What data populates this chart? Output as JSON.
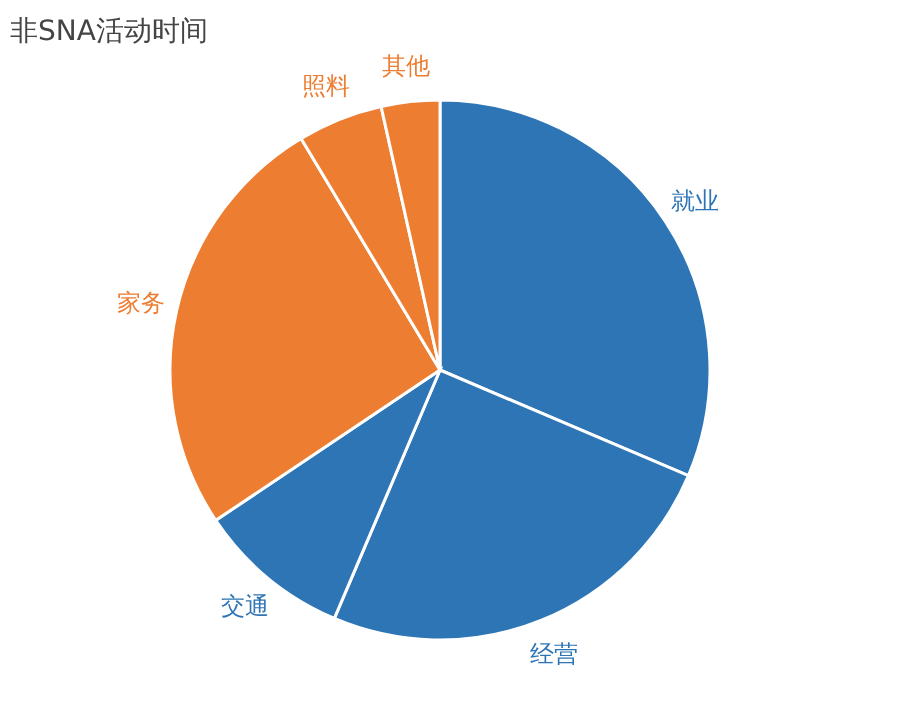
{
  "chart_data": {
    "type": "pie",
    "title": "非SNA活动时间",
    "categories": [
      "就业",
      "经营",
      "交通",
      "家务",
      "照料",
      "其他"
    ],
    "values": [
      31.4,
      25,
      9.2,
      25.8,
      5.1,
      3.5
    ],
    "colors": [
      "#2e75b6",
      "#2e75b6",
      "#2e75b6",
      "#ed7d31",
      "#ed7d31",
      "#ed7d31"
    ],
    "legend": false
  }
}
